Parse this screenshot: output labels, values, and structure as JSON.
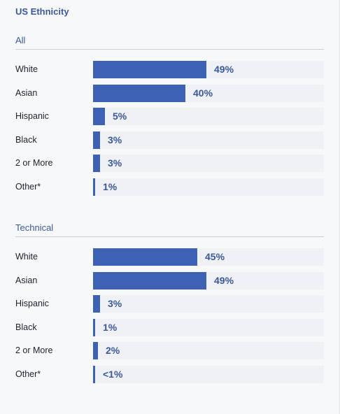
{
  "title": "US Ethnicity",
  "colors": {
    "bar": "#3d62b3",
    "track": "#eff1f4",
    "accent": "#3b5998"
  },
  "chart_data": [
    {
      "type": "bar",
      "orientation": "horizontal",
      "title": "All",
      "categories": [
        "White",
        "Asian",
        "Hispanic",
        "Black",
        "2 or More",
        "Other*"
      ],
      "values": [
        49,
        40,
        5,
        3,
        3,
        1
      ],
      "labels": [
        "49%",
        "40%",
        "5%",
        "3%",
        "3%",
        "1%"
      ],
      "xlim": [
        0,
        100
      ],
      "grid": false
    },
    {
      "type": "bar",
      "orientation": "horizontal",
      "title": "Technical",
      "categories": [
        "White",
        "Asian",
        "Hispanic",
        "Black",
        "2 or More",
        "Other*"
      ],
      "values": [
        45,
        49,
        3,
        1,
        2,
        0.5
      ],
      "labels": [
        "45%",
        "49%",
        "3%",
        "1%",
        "2%",
        "<1%"
      ],
      "xlim": [
        0,
        100
      ],
      "grid": false
    }
  ]
}
